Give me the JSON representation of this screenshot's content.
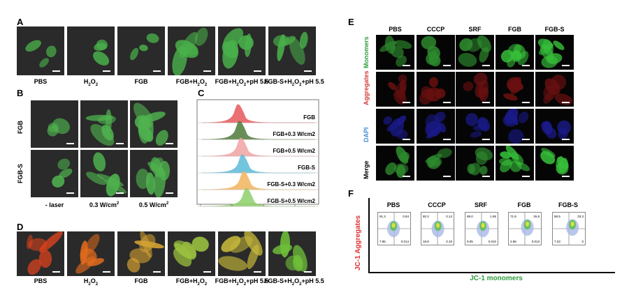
{
  "panelA": {
    "label": "A",
    "captions": [
      "PBS",
      "H2O2",
      "FGB",
      "FGB+H2O2",
      "FGB+H2O2+pH 5.5",
      "FGB-S+H2O2+pH 5.5"
    ]
  },
  "panelB": {
    "label": "B",
    "rows": [
      "FGB",
      "FGB-S"
    ],
    "cols": [
      "- laser",
      "0.3 W/cm2",
      "0.5 W/cm2"
    ]
  },
  "panelC": {
    "label": "C",
    "series": [
      "FGB",
      "FGB+0.3 W/cm2",
      "FGB+0.5 W/cm2",
      "FGB-S",
      "FGB-S+0.3 W/cm2",
      "FGB-S+0.5 W/cm2"
    ],
    "colors": [
      "#e8585a",
      "#4f7a3a",
      "#f0a3a3",
      "#5bbcd8",
      "#f2b45e",
      "#8fcf6b"
    ]
  },
  "panelD": {
    "label": "D",
    "captions": [
      "PBS",
      "H2O2",
      "FGB",
      "FGB+H2O2",
      "FGB+H2O2+pH 5.5",
      "FGB-S+H2O2+pH 5.5"
    ]
  },
  "panelE": {
    "label": "E",
    "cols": [
      "PBS",
      "CCCP",
      "SRF",
      "FGB",
      "FGB-S"
    ],
    "rows": [
      "Monomers",
      "Aggregates",
      "DAPI",
      "Merge"
    ]
  },
  "panelF": {
    "label": "F",
    "cols": [
      "PBS",
      "CCCP",
      "SRF",
      "FGB",
      "FGB-S"
    ],
    "ylabel": "JC-1 Aggregates",
    "xlabel": "JC-1 monomers",
    "quadrants": [
      [
        "91.3",
        "0.84",
        "7.85",
        "0.014"
      ],
      [
        "80.2",
        "0.14",
        "18.8",
        "0.19"
      ],
      [
        "89.0",
        "1.95",
        "9.05",
        "0.010"
      ],
      [
        "71.8",
        "26.8",
        "2.88",
        "0.013"
      ],
      [
        "58.5",
        "33.3",
        "7.23",
        "0"
      ]
    ]
  }
}
